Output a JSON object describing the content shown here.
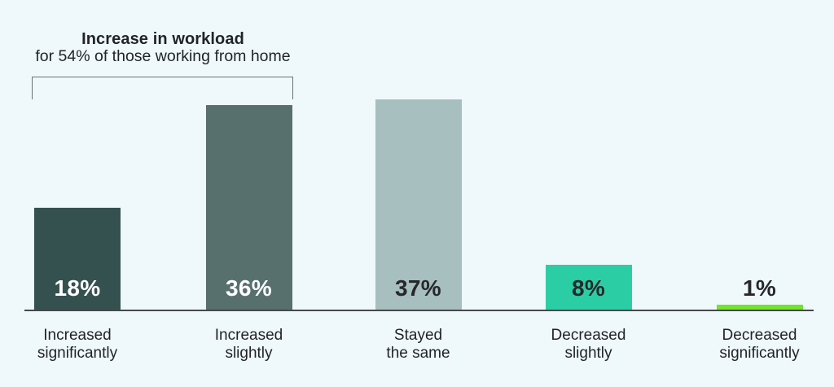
{
  "page": {
    "background_color": "#eff8fa"
  },
  "chart_data": {
    "type": "bar",
    "title": "Increase in workload",
    "subtitle": "for 54% of those working from home",
    "categories": [
      "Increased\nsignificantly",
      "Increased\nslightly",
      "Stayed\nthe same",
      "Decreased\nslightly",
      "Decreased\nsignificantly"
    ],
    "values": [
      18,
      36,
      37,
      8,
      1
    ],
    "value_labels": [
      "18%",
      "36%",
      "37%",
      "8%",
      "1%"
    ],
    "bar_colors": [
      "#35514f",
      "#57706e",
      "#a7bfbe",
      "#2bcea4",
      "#70e52b"
    ],
    "value_label_colors": [
      "#ffffff",
      "#ffffff",
      "#26282b",
      "#26282b",
      "#26282b"
    ],
    "axis_line_color": "#45494b",
    "annotation": {
      "bracket_spans_first_n_bars": 2,
      "bracket_color": "#6b7275",
      "combined_share_text": "54%"
    },
    "ylim": [
      0,
      40
    ],
    "grid": false,
    "legend": false
  }
}
